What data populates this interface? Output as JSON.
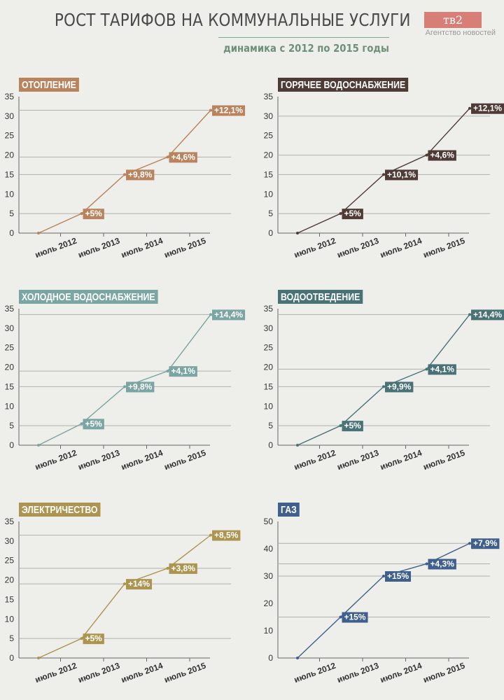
{
  "header": {
    "title": "РОСТ ТАРИФОВ НА КОММУНАЛЬНЫЕ УСЛУГИ",
    "subtitle": "динамика с 2012 по 2015 годы",
    "logo": "тв2",
    "logo_caption": "Агентство новостей"
  },
  "chart_data": [
    {
      "type": "line",
      "title": "ОТОПЛЕНИЕ",
      "color": "#b9835e",
      "categories": [
        "",
        "июль 2012",
        "июль 2013",
        "июль 2014",
        "июль 2015"
      ],
      "values": [
        0,
        5,
        15,
        19.5,
        31.5
      ],
      "labels": [
        "",
        "+5%",
        "+9,8%",
        "+4,6%",
        "+12,1%"
      ],
      "yticks": [
        0,
        5,
        10,
        15,
        20,
        25,
        30,
        35
      ],
      "ylim": [
        0,
        35
      ],
      "gridlines": [
        5,
        15,
        19.5,
        31.5
      ]
    },
    {
      "type": "line",
      "title": "ГОРЯЧЕЕ ВОДОСНАБЖЕНИЕ",
      "color": "#4e3b36",
      "categories": [
        "",
        "июль 2012",
        "июль 2013",
        "июль 2014",
        "июль 2015"
      ],
      "values": [
        0,
        5,
        15,
        20,
        32
      ],
      "labels": [
        "",
        "+5%",
        "+10,1%",
        "+4,6%",
        "+12,1%"
      ],
      "yticks": [
        0,
        5,
        10,
        15,
        20,
        25,
        30,
        35
      ],
      "ylim": [
        0,
        35
      ],
      "gridlines": [
        5,
        15,
        20,
        30
      ]
    },
    {
      "type": "line",
      "title": "ХОЛОДНОЕ ВОДОСНАБЖЕНИЕ",
      "color": "#7aa5a2",
      "categories": [
        "",
        "июль 2012",
        "июль 2013",
        "июль 2014",
        "июль 2015"
      ],
      "values": [
        0,
        5.5,
        15,
        19,
        33.5
      ],
      "labels": [
        "",
        "+5%",
        "+9,8%",
        "+4,1%",
        "+14,4%"
      ],
      "yticks": [
        0,
        5,
        10,
        15,
        20,
        25,
        30,
        35
      ],
      "ylim": [
        0,
        35
      ],
      "gridlines": [
        5,
        15,
        19,
        33.5
      ]
    },
    {
      "type": "line",
      "title": "ВОДООТВЕДЕНИЕ",
      "color": "#497276",
      "categories": [
        "",
        "июль 2012",
        "июль 2013",
        "июль 2014",
        "июль 2015"
      ],
      "values": [
        0,
        5,
        15,
        19.5,
        33.5
      ],
      "labels": [
        "",
        "+5%",
        "+9,9%",
        "+4,1%",
        "+14,4%"
      ],
      "yticks": [
        0,
        5,
        10,
        15,
        20,
        25,
        30,
        35
      ],
      "ylim": [
        0,
        35
      ],
      "gridlines": [
        5,
        15,
        19.5,
        33.5
      ]
    },
    {
      "type": "line",
      "title": "ЭЛЕКТРИЧЕСТВО",
      "color": "#ad9450",
      "categories": [
        "",
        "июль 2012",
        "июль 2013",
        "июль 2014",
        "июль 2015"
      ],
      "values": [
        0,
        5,
        19,
        23,
        31.5
      ],
      "labels": [
        "",
        "+5%",
        "+14%",
        "+3,8%",
        "+8,5%"
      ],
      "yticks": [
        0,
        5,
        10,
        15,
        20,
        25,
        30,
        35
      ],
      "ylim": [
        0,
        35
      ],
      "gridlines": [
        5,
        19,
        23,
        31.5
      ]
    },
    {
      "type": "line",
      "title": "ГАЗ",
      "color": "#3f5f8d",
      "categories": [
        "",
        "июль 2012",
        "июль 2013",
        "июль 2014",
        "июль 2015"
      ],
      "values": [
        0,
        15,
        30,
        34.5,
        42
      ],
      "labels": [
        "",
        "+15%",
        "+15%",
        "+4,3%",
        "+7,9%"
      ],
      "yticks": [
        0,
        10,
        20,
        30,
        40,
        50
      ],
      "ylim": [
        0,
        50
      ],
      "gridlines": [
        15,
        30,
        34.5,
        42
      ]
    }
  ]
}
